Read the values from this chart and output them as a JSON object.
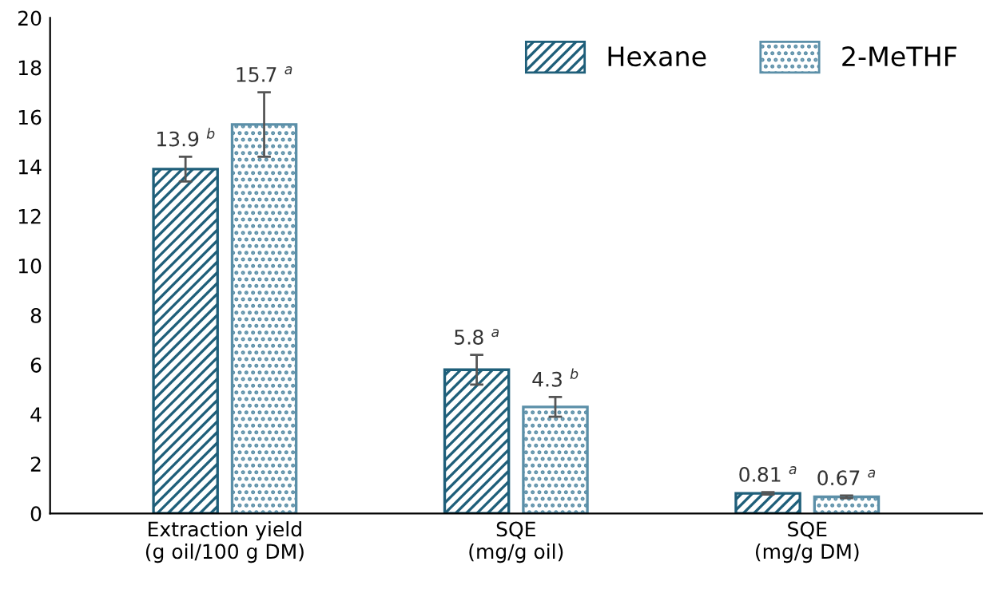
{
  "chart_data": {
    "type": "bar",
    "categories": [
      "Extraction yield\n(g oil/100 g DM)",
      "SQE\n(mg/g oil)",
      "SQE\n(mg/g DM)"
    ],
    "series": [
      {
        "name": "Hexane",
        "color": "#1f5f7a",
        "values": [
          13.9,
          5.8,
          0.81
        ],
        "errors": [
          0.5,
          0.6,
          0.05
        ],
        "value_labels": [
          "13.9 $^{b}$",
          "5.8 $^{a}$",
          "0.81 $^{a}$"
        ]
      },
      {
        "name": "2-MeTHF",
        "color": "#5b8fa8",
        "values": [
          15.7,
          4.3,
          0.67
        ],
        "errors": [
          1.3,
          0.4,
          0.05
        ],
        "value_labels": [
          "15.7 $^{a}$",
          "4.3 $^{b}$",
          "0.67 $^{a}$"
        ]
      }
    ],
    "ylim": [
      0,
      20
    ],
    "yticks": [
      0,
      2,
      4,
      6,
      8,
      10,
      12,
      14,
      16,
      18,
      20
    ],
    "grid": false,
    "legend": "top right"
  }
}
